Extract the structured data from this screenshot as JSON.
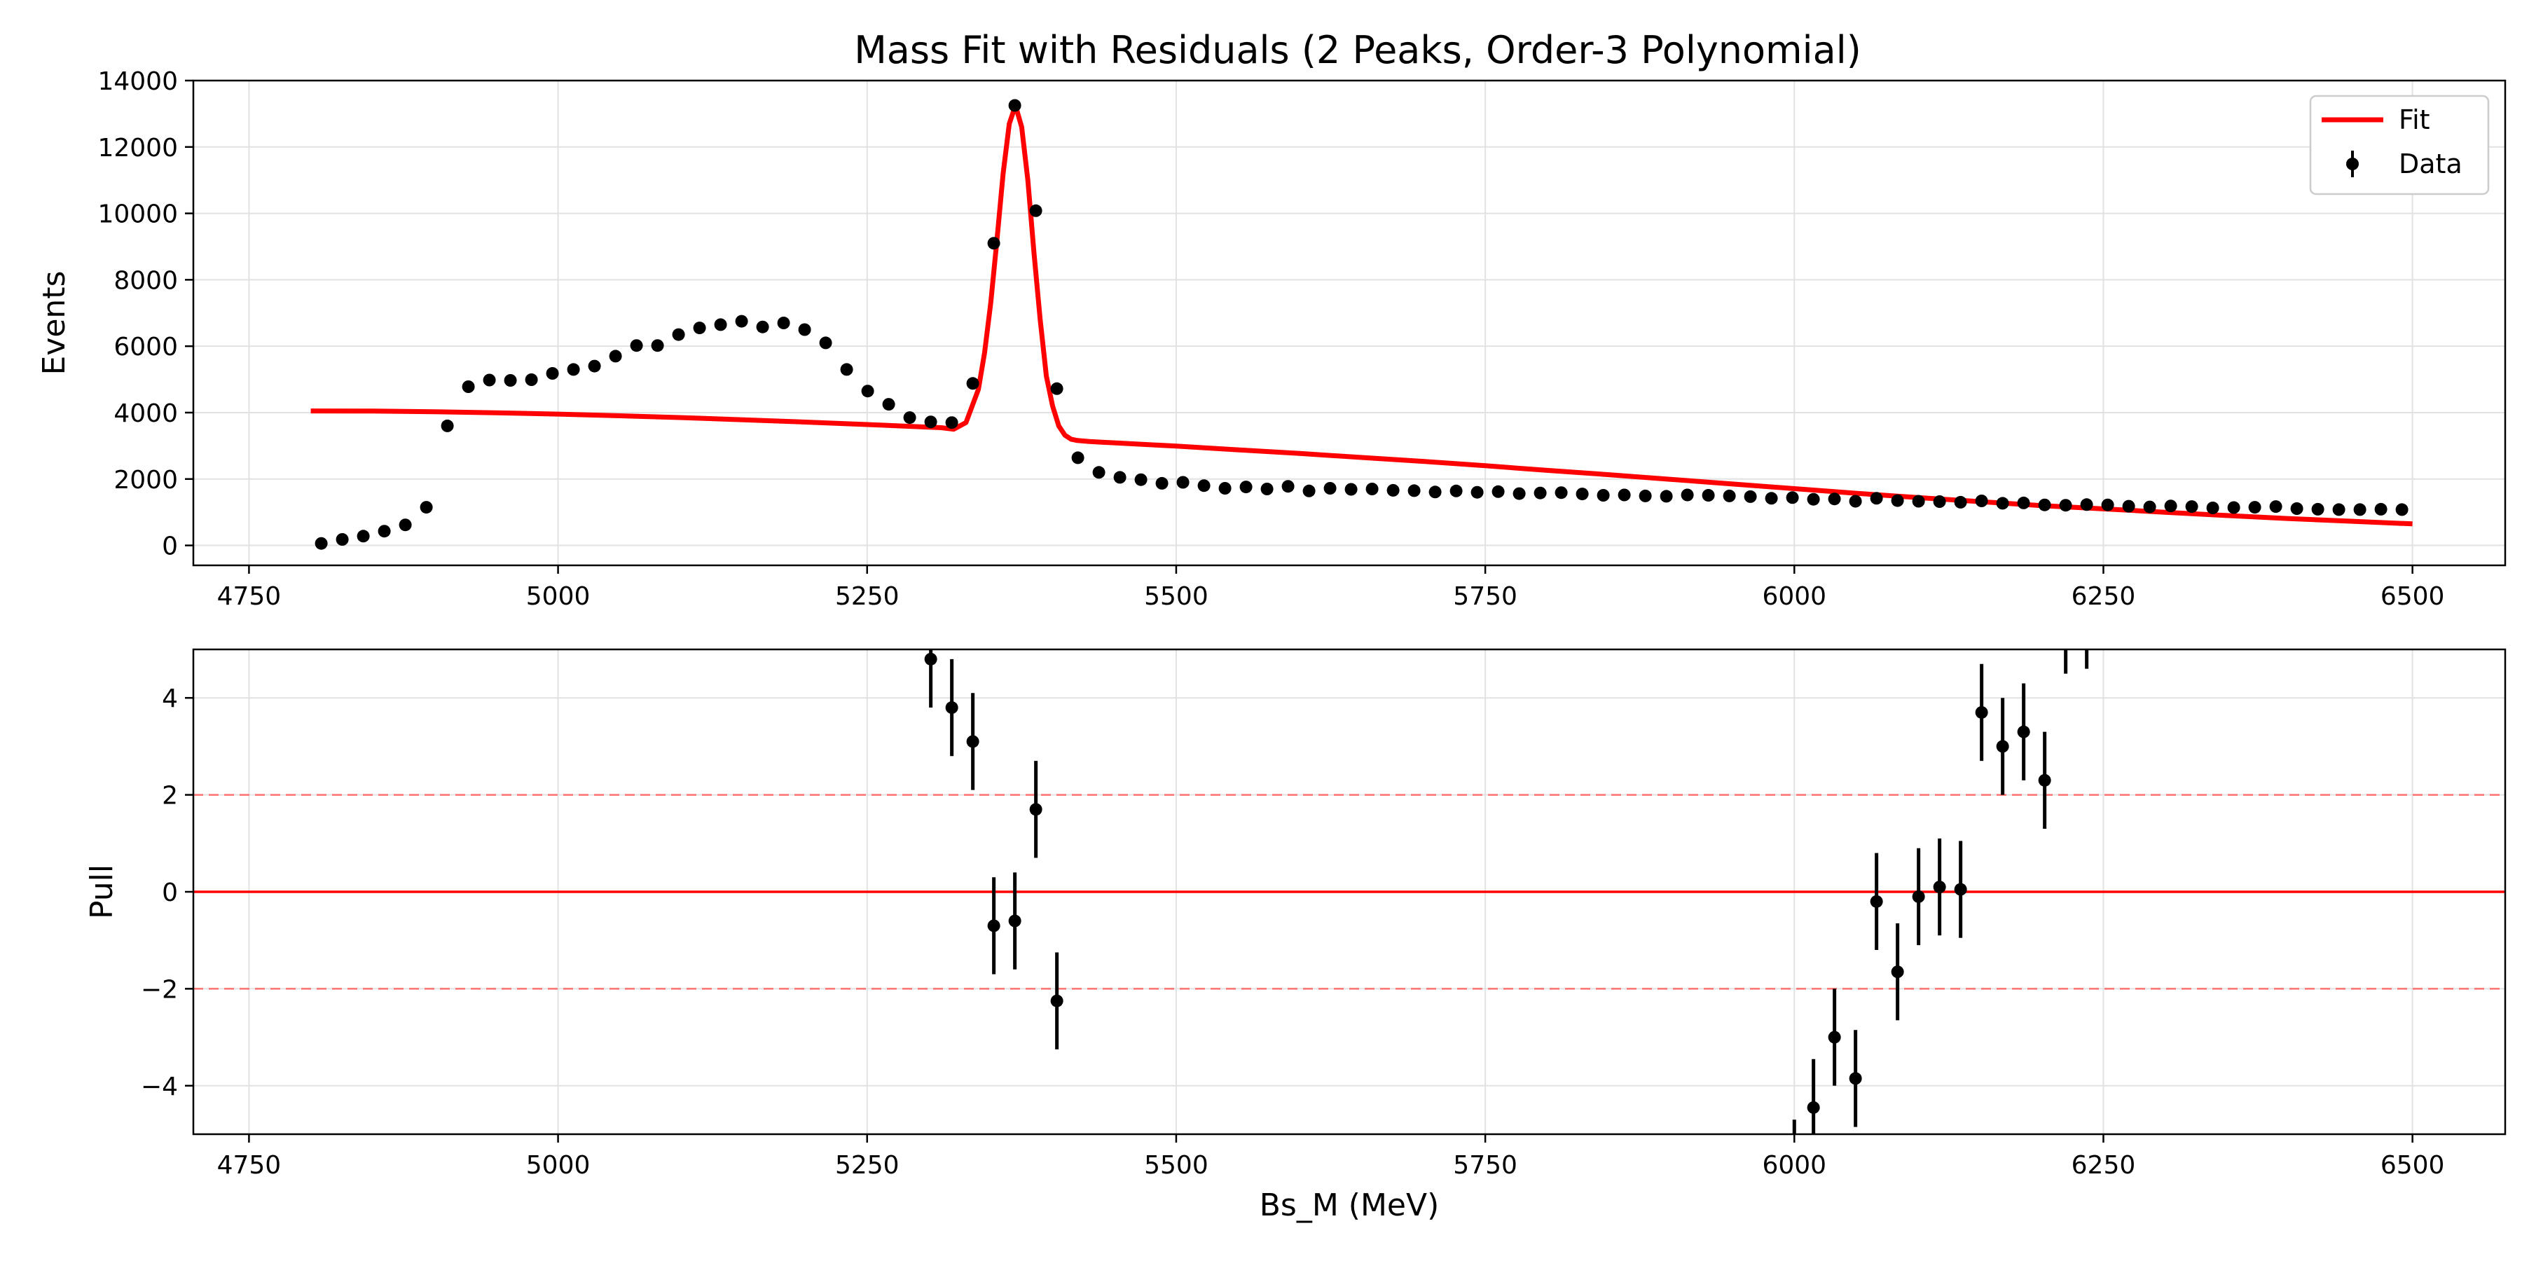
{
  "chart_data": [
    {
      "type": "scatter",
      "title": "Mass Fit with Residuals (2 Peaks, Order-3 Polynomial)",
      "xlabel": "",
      "ylabel": "Events",
      "xlim": [
        4705,
        6575
      ],
      "ylim": [
        -600,
        14000
      ],
      "x_ticks": [
        4750,
        5000,
        5250,
        5500,
        5750,
        6000,
        6250,
        6500
      ],
      "y_ticks": [
        0,
        2000,
        4000,
        6000,
        8000,
        10000,
        12000,
        14000
      ],
      "grid": true,
      "legend": {
        "placement": "top-right",
        "entries": [
          {
            "label": "Fit",
            "color": "#ff0000",
            "marker": "line"
          },
          {
            "label": "Data",
            "color": "#000000",
            "marker": "errorbar-point"
          }
        ]
      },
      "series": [
        {
          "name": "Data",
          "kind": "points",
          "color": "#000000",
          "x": [
            4808.5,
            4825.5,
            4842.5,
            4859.5,
            4876.5,
            4893.5,
            4910.5,
            4927.5,
            4944.5,
            4961.5,
            4978.5,
            4995.5,
            5012.5,
            5029.5,
            5046.5,
            5063.5,
            5080.5,
            5097.5,
            5114.5,
            5131.5,
            5148.5,
            5165.5,
            5182.5,
            5199.5,
            5216.5,
            5233.5,
            5250.5,
            5267.5,
            5284.5,
            5301.5,
            5318.5,
            5335.5,
            5352.5,
            5369.5,
            5386.5,
            5403.5,
            5420.5,
            5437.5,
            5454.5,
            5471.5,
            5488.5,
            5505.5,
            5522.5,
            5539.5,
            5556.5,
            5573.5,
            5590.5,
            5607.5,
            5624.5,
            5641.5,
            5658.5,
            5675.5,
            5692.5,
            5709.5,
            5726.5,
            5743.5,
            5760.5,
            5777.5,
            5794.5,
            5811.5,
            5828.5,
            5845.5,
            5862.5,
            5879.5,
            5896.5,
            5913.5,
            5930.5,
            5947.5,
            5964.5,
            5981.5,
            5998.5,
            6015.5,
            6032.5,
            6049.5,
            6066.5,
            6083.5,
            6100.5,
            6117.5,
            6134.5,
            6151.5,
            6168.5,
            6185.5,
            6202.5,
            6219.5,
            6236.5,
            6253.5,
            6270.5,
            6287.5,
            6304.5,
            6321.5,
            6338.5,
            6355.5,
            6372.5,
            6389.5,
            6406.5,
            6423.5,
            6440.5,
            6457.5,
            6474.5,
            6491.5
          ],
          "y": [
            60,
            180,
            280,
            430,
            620,
            1150,
            3600,
            4780,
            4980,
            4970,
            4990,
            5180,
            5300,
            5400,
            5700,
            6020,
            6020,
            6350,
            6550,
            6650,
            6750,
            6580,
            6700,
            6500,
            6100,
            5300,
            4650,
            4250,
            3850,
            3720,
            3700,
            4880,
            9100,
            13250,
            10080,
            4720,
            2640,
            2200,
            2050,
            1980,
            1870,
            1900,
            1800,
            1720,
            1760,
            1700,
            1780,
            1640,
            1720,
            1690,
            1700,
            1660,
            1650,
            1610,
            1640,
            1600,
            1620,
            1560,
            1580,
            1590,
            1550,
            1510,
            1520,
            1490,
            1480,
            1520,
            1510,
            1490,
            1470,
            1420,
            1440,
            1390,
            1400,
            1330,
            1420,
            1350,
            1330,
            1320,
            1300,
            1340,
            1270,
            1280,
            1220,
            1210,
            1230,
            1220,
            1180,
            1160,
            1190,
            1170,
            1130,
            1140,
            1150,
            1170,
            1110,
            1090,
            1080,
            1080,
            1090,
            1080
          ]
        },
        {
          "name": "Fit",
          "kind": "line",
          "color": "#ff0000",
          "x": [
            4800,
            4850,
            4900,
            4950,
            5000,
            5050,
            5100,
            5150,
            5200,
            5250,
            5300,
            5310,
            5320,
            5330,
            5340,
            5345,
            5350,
            5355,
            5360,
            5365,
            5370,
            5375,
            5380,
            5385,
            5390,
            5395,
            5400,
            5405,
            5410,
            5415,
            5420,
            5430,
            5440,
            5450,
            5500,
            5550,
            5600,
            5650,
            5700,
            5750,
            5800,
            5850,
            5900,
            5950,
            6000,
            6050,
            6100,
            6150,
            6200,
            6250,
            6300,
            6350,
            6400,
            6450,
            6500
          ],
          "y": [
            4050,
            4045,
            4025,
            3995,
            3955,
            3905,
            3850,
            3785,
            3715,
            3640,
            3560,
            3545,
            3500,
            3700,
            4700,
            5800,
            7300,
            9200,
            11200,
            12700,
            13250,
            12600,
            11000,
            8800,
            6800,
            5100,
            4200,
            3600,
            3320,
            3200,
            3160,
            3130,
            3110,
            3090,
            2990,
            2880,
            2770,
            2650,
            2530,
            2400,
            2260,
            2130,
            1990,
            1850,
            1710,
            1570,
            1440,
            1320,
            1200,
            1100,
            1000,
            900,
            810,
            730,
            650
          ]
        }
      ]
    },
    {
      "type": "scatter",
      "title": "",
      "xlabel": "Bs_M (MeV)",
      "ylabel": "Pull",
      "xlim": [
        4705,
        6575
      ],
      "ylim": [
        -5,
        5
      ],
      "x_ticks": [
        4750,
        5000,
        5250,
        5500,
        5750,
        6000,
        6250,
        6500
      ],
      "y_ticks": [
        -4,
        -2,
        0,
        2,
        4
      ],
      "grid": true,
      "reference_lines": [
        {
          "y": 0,
          "style": "solid",
          "color": "#ff0000"
        },
        {
          "y": 2,
          "style": "dashed",
          "color": "#ff7070"
        },
        {
          "y": -2,
          "style": "dashed",
          "color": "#ff7070"
        }
      ],
      "series": [
        {
          "name": "Pull",
          "kind": "errorbar-points",
          "color": "#000000",
          "error": 1,
          "x": [
            5301.5,
            5318.5,
            5335.5,
            5352.5,
            5369.5,
            5386.5,
            5403.5,
            6000,
            6015.5,
            6032.5,
            6049.5,
            6066.5,
            6083.5,
            6100.5,
            6117.5,
            6134.5,
            6151.5,
            6168.5,
            6185.5,
            6202.5,
            6219.5,
            6236.5
          ],
          "y": [
            4.8,
            3.8,
            3.1,
            -0.7,
            -0.6,
            1.7,
            -2.25,
            -5.7,
            -4.45,
            -3.0,
            -3.85,
            -0.2,
            -1.65,
            -0.1,
            0.1,
            0.05,
            3.7,
            3.0,
            3.3,
            2.3,
            5.5,
            5.6
          ]
        }
      ]
    }
  ]
}
